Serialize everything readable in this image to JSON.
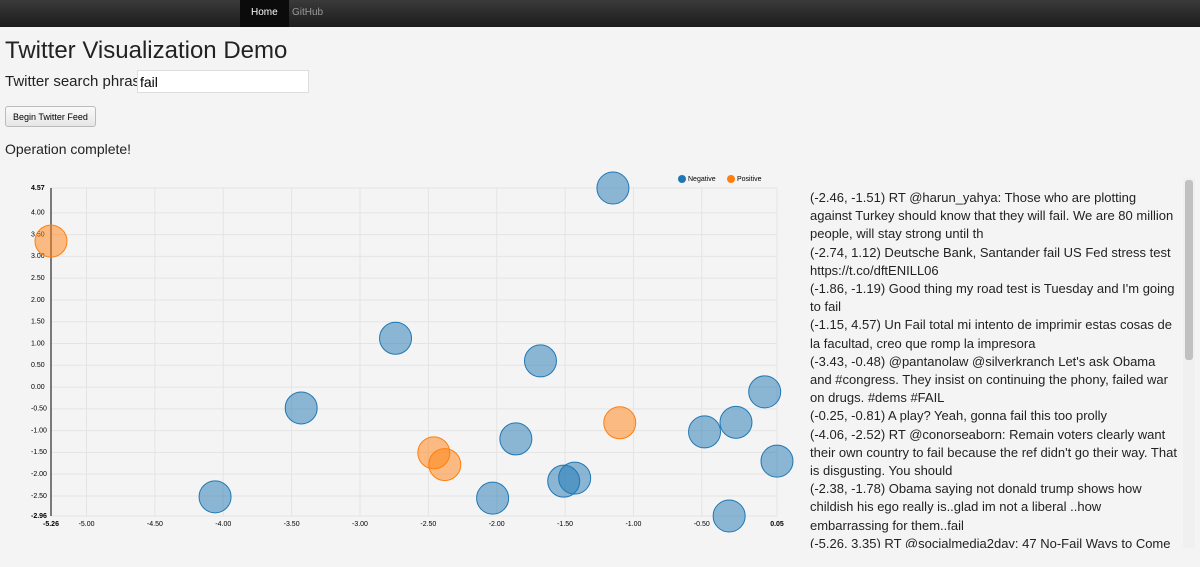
{
  "nav": {
    "items": [
      "Home",
      "GitHub"
    ]
  },
  "header": {
    "title": "Twitter Visualization Demo"
  },
  "search": {
    "label": "Twitter search phrase:",
    "value": "fail"
  },
  "button": {
    "label": "Begin Twitter Feed"
  },
  "status": "Operation complete!",
  "chart_data": {
    "type": "scatter",
    "xlim": [
      -5.26,
      0.05
    ],
    "ylim": [
      -2.96,
      4.57
    ],
    "xticks": [
      -5.26,
      {
        "value": -5,
        "label": "-5.00"
      },
      {
        "value": -4.5,
        "label": "-4.50"
      },
      {
        "value": -4,
        "label": "-4.00"
      },
      {
        "value": -3.5,
        "label": "-3.50"
      },
      {
        "value": -3,
        "label": "-3.00"
      },
      {
        "value": -2.5,
        "label": "-2.50"
      },
      {
        "value": -2,
        "label": "-2.00"
      },
      {
        "value": -1.5,
        "label": "-1.50"
      },
      {
        "value": -1,
        "label": "-1.00"
      },
      {
        "value": -0.5,
        "label": "-0.50"
      },
      0.05
    ],
    "yticks": [
      -2.96,
      {
        "value": -2.5,
        "label": "-2.50"
      },
      {
        "value": -2,
        "label": "-2.00"
      },
      {
        "value": -1.5,
        "label": "-1.50"
      },
      {
        "value": -1,
        "label": "-1.00"
      },
      {
        "value": -0.5,
        "label": "-0.50"
      },
      {
        "value": 0,
        "label": "0.00"
      },
      {
        "value": 0.5,
        "label": "0.50"
      },
      {
        "value": 1,
        "label": "1.00"
      },
      {
        "value": 1.5,
        "label": "1.50"
      },
      {
        "value": 2,
        "label": "2.00"
      },
      {
        "value": 2.5,
        "label": "2.50"
      },
      {
        "value": 3,
        "label": "3.00"
      },
      {
        "value": 3.5,
        "label": "3.50"
      },
      {
        "value": 4,
        "label": "4.00"
      },
      4.57
    ],
    "grid": true,
    "legend": "top-right",
    "series": [
      {
        "name": "Negative",
        "color": "#1f77b4",
        "x": [
          -1.15,
          -2.74,
          -1.68,
          -0.04,
          -3.43,
          -0.25,
          -0.48,
          -1.86,
          0.05,
          -1.43,
          -1.51,
          -4.06,
          -2.03,
          -0.3
        ],
        "y": [
          4.57,
          1.12,
          0.6,
          -0.11,
          -0.48,
          -0.81,
          -1.03,
          -1.19,
          -1.7,
          -2.09,
          -2.16,
          -2.52,
          -2.55,
          -2.96
        ]
      },
      {
        "name": "Positive",
        "color": "#ff7f0e",
        "x": [
          -5.26,
          -1.1,
          -2.46,
          -2.38
        ],
        "y": [
          3.35,
          -0.82,
          -1.51,
          -1.78
        ]
      }
    ]
  },
  "tweets": [
    "(-2.46, -1.51) RT @harun_yahya: Those who are plotting against Turkey should know that they will fail. We are 80 million people, will stay strong until th",
    "(-2.74, 1.12) Deutsche Bank, Santander fail US Fed stress test https://t.co/dftENILL06",
    "(-1.86, -1.19) Good thing my road test is Tuesday and I'm going to fail",
    "(-1.15, 4.57) Un Fail total mi intento de imprimir estas cosas de la facultad, creo que romp la impresora",
    "(-3.43, -0.48) @pantanolaw @silverkranch Let's ask Obama and #congress. They insist on continuing the phony, failed war on drugs. #dems #FAIL",
    "(-0.25, -0.81) A play? Yeah, gonna fail this too prolly",
    "(-4.06, -2.52) RT @conorseaborn: Remain voters clearly want their own country to fail because the ref didn't go their way. That is disgusting. You should",
    "(-2.38, -1.78) Obama saying not donald trump shows how childish his ego really is..glad im not a liberal ..how embarrassing for them..fail",
    "(-5.26, 3.35) RT @socialmedia2day: 47 No-Fail Ways to Come"
  ]
}
